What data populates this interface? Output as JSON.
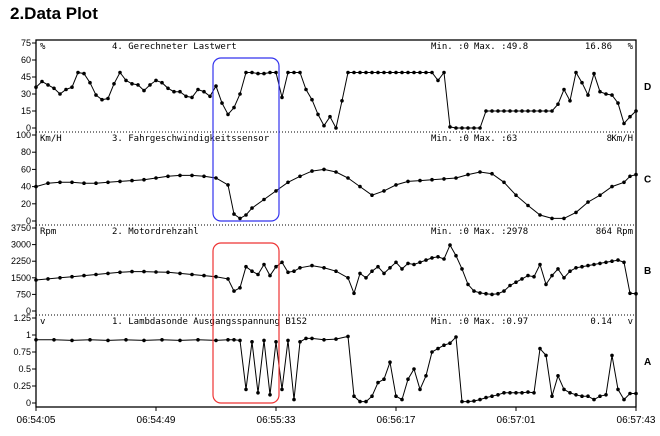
{
  "title": "2.Data Plot",
  "chart_data": {
    "type": "line",
    "x_ticks": [
      "06:54:05",
      "06:54:49",
      "06:55:33",
      "06:56:17",
      "06:57:01",
      "06:57:43"
    ],
    "x_range": [
      0,
      100
    ],
    "panels": [
      {
        "tag": "D",
        "unit": "%",
        "name": "4. Gerechneter Lastwert",
        "min_label": "Min. :0",
        "max_label": "Max. :49.8",
        "current": "16.86",
        "ylim": [
          0,
          75
        ],
        "yticks": [
          "75",
          "60",
          "45",
          "30",
          "15",
          "0"
        ],
        "x": [
          0,
          1,
          2,
          3,
          4,
          5,
          6,
          7,
          8,
          9,
          10,
          11,
          12,
          13,
          14,
          15,
          16,
          17,
          18,
          19,
          20,
          21,
          22,
          23,
          24,
          25,
          26,
          27,
          28,
          29,
          30,
          31,
          32,
          33,
          34,
          35,
          36,
          37,
          38,
          39,
          40,
          41,
          42,
          43,
          44,
          45,
          46,
          47,
          48,
          49,
          50,
          51,
          52,
          53,
          54,
          55,
          56,
          57,
          58,
          59,
          60,
          61,
          62,
          63,
          64,
          65,
          66,
          67,
          68,
          69,
          70,
          71,
          72,
          73,
          74,
          75,
          76,
          77,
          78,
          79,
          80,
          81,
          82,
          83,
          84,
          85,
          86,
          87,
          88,
          89,
          90,
          91,
          92,
          93,
          94,
          95,
          96,
          97,
          98,
          99,
          100
        ],
        "y": [
          36,
          41,
          38,
          35,
          30,
          34,
          36,
          49,
          48,
          40,
          29,
          25,
          26,
          39,
          49,
          42,
          39,
          38,
          33,
          38,
          42,
          40,
          35,
          32,
          32,
          28,
          27,
          34,
          32,
          28,
          37,
          22,
          12,
          18,
          30,
          49,
          49,
          48,
          48,
          49,
          49,
          27,
          49,
          49,
          49,
          34,
          25,
          12,
          2,
          10,
          0,
          24,
          49,
          49,
          49,
          49,
          49,
          49,
          49,
          49,
          49,
          49,
          49,
          49,
          49,
          49,
          49,
          42,
          49,
          1,
          0,
          0,
          0,
          0,
          0,
          15,
          15,
          15,
          15,
          15,
          15,
          15,
          15,
          15,
          15,
          15,
          15,
          21,
          34,
          24,
          49,
          40,
          29,
          48,
          32,
          30,
          29,
          22,
          4,
          10,
          15
        ]
      },
      {
        "tag": "C",
        "unit": "Km/H",
        "name": "3. Fahrgeschwindigkeitssensor",
        "min_label": "Min. :0",
        "max_label": "Max. :63",
        "current": "8",
        "ylim": [
          0,
          100
        ],
        "yticks": [
          "100",
          "80",
          "60",
          "40",
          "20",
          "0"
        ],
        "x": [
          0,
          2,
          4,
          6,
          8,
          10,
          12,
          14,
          16,
          18,
          20,
          22,
          24,
          26,
          28,
          30,
          32,
          33,
          34,
          35,
          36,
          38,
          40,
          42,
          44,
          46,
          48,
          50,
          52,
          54,
          56,
          58,
          60,
          62,
          64,
          66,
          68,
          70,
          72,
          74,
          76,
          78,
          80,
          82,
          84,
          86,
          88,
          90,
          92,
          94,
          96,
          98,
          99,
          100
        ],
        "y": [
          40,
          44,
          45,
          45,
          44,
          44,
          45,
          46,
          47,
          48,
          50,
          52,
          53,
          53,
          52,
          50,
          42,
          8,
          3,
          7,
          15,
          25,
          35,
          45,
          52,
          58,
          60,
          57,
          50,
          40,
          30,
          35,
          42,
          46,
          47,
          48,
          49,
          50,
          54,
          57,
          55,
          45,
          30,
          18,
          7,
          3,
          3,
          10,
          22,
          30,
          40,
          45,
          52,
          54
        ]
      },
      {
        "tag": "B",
        "unit": "Rpm",
        "name": "2. Motordrehzahl",
        "min_label": "Min. :0",
        "max_label": "Max. :2978",
        "current": "864",
        "ylim": [
          0,
          3750
        ],
        "yticks": [
          "3750",
          "3000",
          "2250",
          "1500",
          "750",
          "0"
        ],
        "x": [
          0,
          2,
          4,
          6,
          8,
          10,
          12,
          14,
          16,
          18,
          20,
          22,
          24,
          26,
          28,
          30,
          32,
          33,
          34,
          35,
          36,
          37,
          38,
          39,
          40,
          41,
          42,
          43,
          44,
          46,
          48,
          50,
          52,
          53,
          54,
          55,
          56,
          57,
          58,
          59,
          60,
          61,
          62,
          63,
          64,
          65,
          66,
          67,
          68,
          69,
          70,
          71,
          72,
          73,
          74,
          75,
          76,
          77,
          78,
          79,
          80,
          81,
          82,
          83,
          84,
          85,
          86,
          87,
          88,
          89,
          90,
          91,
          92,
          93,
          94,
          95,
          96,
          97,
          98,
          99,
          100
        ],
        "y": [
          1400,
          1450,
          1500,
          1550,
          1600,
          1650,
          1700,
          1750,
          1780,
          1780,
          1760,
          1750,
          1700,
          1650,
          1600,
          1550,
          1450,
          900,
          1050,
          2000,
          1800,
          1650,
          2100,
          1600,
          2000,
          2200,
          1750,
          1800,
          1950,
          2050,
          1950,
          1800,
          1500,
          800,
          1700,
          1500,
          1800,
          2000,
          1700,
          1950,
          2200,
          1900,
          2150,
          2100,
          2200,
          2300,
          2400,
          2450,
          2350,
          2978,
          2500,
          1900,
          1200,
          900,
          820,
          780,
          750,
          780,
          900,
          1150,
          1300,
          1450,
          1600,
          1550,
          2100,
          1200,
          1600,
          1900,
          1500,
          1800,
          1950,
          2000,
          2050,
          2100,
          2150,
          2200,
          2250,
          2300,
          2200,
          800,
          780
        ]
      },
      {
        "tag": "A",
        "unit": "v",
        "name": "1. Lambdasonde Ausgangsspannung B1S2",
        "min_label": "Min. :0",
        "max_label": "Max. :0.97",
        "current": "0.14",
        "ylim": [
          0,
          1.25
        ],
        "yticks": [
          "1.25",
          "1",
          "0.75",
          "0.5",
          "0.25",
          "0"
        ],
        "x": [
          0,
          3,
          6,
          9,
          12,
          15,
          18,
          21,
          24,
          27,
          30,
          32,
          33,
          34,
          35,
          36,
          37,
          38,
          39,
          40,
          41,
          42,
          43,
          44,
          45,
          46,
          48,
          50,
          52,
          53,
          54,
          55,
          56,
          57,
          58,
          59,
          60,
          61,
          62,
          63,
          64,
          65,
          66,
          67,
          68,
          69,
          70,
          71,
          72,
          73,
          74,
          75,
          76,
          77,
          78,
          79,
          80,
          81,
          82,
          83,
          84,
          85,
          86,
          87,
          88,
          89,
          90,
          91,
          92,
          93,
          94,
          95,
          96,
          97,
          98,
          99,
          100
        ],
        "y": [
          0.93,
          0.93,
          0.92,
          0.93,
          0.92,
          0.93,
          0.92,
          0.93,
          0.92,
          0.93,
          0.92,
          0.93,
          0.93,
          0.92,
          0.2,
          0.9,
          0.15,
          0.92,
          0.12,
          0.9,
          0.2,
          0.92,
          0.05,
          0.9,
          0.95,
          0.95,
          0.93,
          0.94,
          0.98,
          0.1,
          0.02,
          0.02,
          0.1,
          0.3,
          0.35,
          0.6,
          0.1,
          0.05,
          0.35,
          0.5,
          0.2,
          0.4,
          0.75,
          0.8,
          0.85,
          0.88,
          0.97,
          0.02,
          0.02,
          0.03,
          0.05,
          0.08,
          0.1,
          0.12,
          0.15,
          0.15,
          0.15,
          0.15,
          0.16,
          0.15,
          0.8,
          0.7,
          0.1,
          0.4,
          0.2,
          0.15,
          0.12,
          0.1,
          0.1,
          0.05,
          0.1,
          0.12,
          0.7,
          0.2,
          0.05,
          0.14,
          0.14
        ]
      }
    ],
    "highlights": [
      {
        "color": "#3333ee",
        "x0": 29.5,
        "x1": 40.5,
        "panels": [
          0,
          1
        ]
      },
      {
        "color": "#ee3333",
        "x0": 29.5,
        "x1": 40.5,
        "panels": [
          2,
          3
        ]
      }
    ]
  }
}
